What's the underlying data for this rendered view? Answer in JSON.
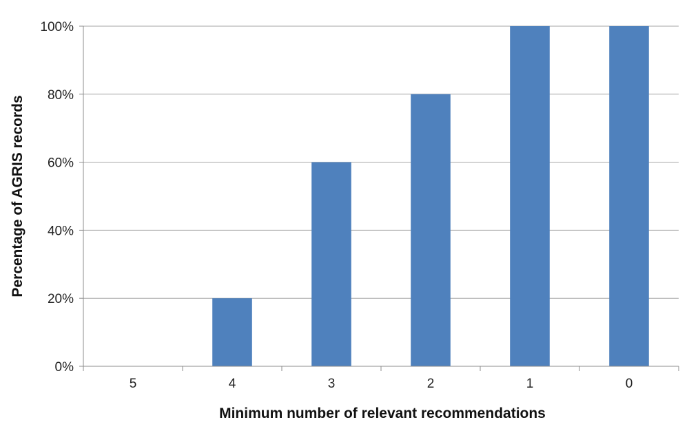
{
  "chart_data": {
    "type": "bar",
    "title": "",
    "xlabel": "Minimum number of relevant recommendations",
    "ylabel": "Percentage of AGRIS records",
    "categories": [
      "5",
      "4",
      "3",
      "2",
      "1",
      "0"
    ],
    "values": [
      0,
      20,
      60,
      80,
      100,
      100
    ],
    "ylim": [
      0,
      100
    ],
    "yticks": [
      "0%",
      "20%",
      "40%",
      "60%",
      "80%",
      "100%"
    ],
    "grid": true,
    "legend": "none",
    "colors": {
      "bar": "#4f81bd",
      "grid": "#a6a6a6",
      "axis": "#8c8c8c"
    }
  }
}
